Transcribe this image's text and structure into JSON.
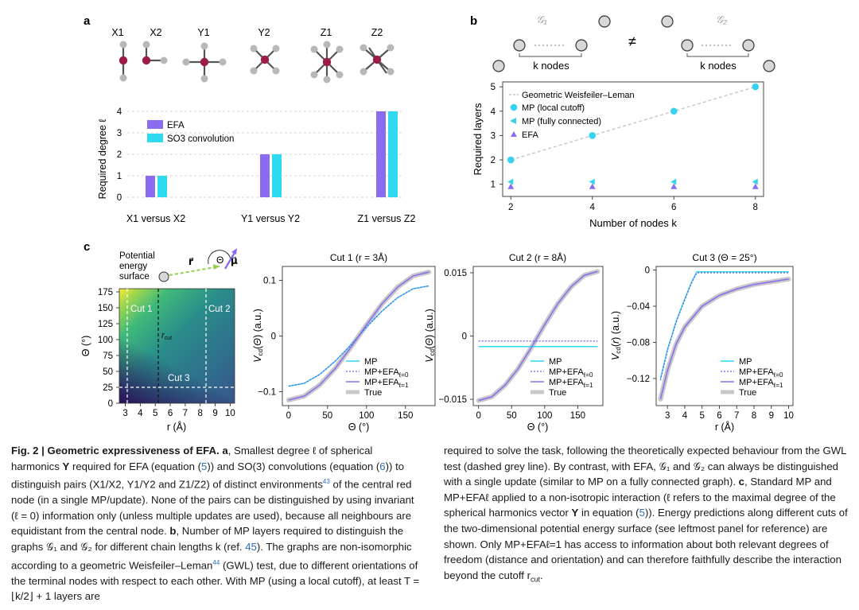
{
  "panels": {
    "a": {
      "label": "a",
      "molecules": [
        "X1",
        "X2",
        "Y1",
        "Y2",
        "Z1",
        "Z2"
      ],
      "chart_data": {
        "type": "bar",
        "ylabel": "Required degree ℓ",
        "ylim": [
          0,
          4
        ],
        "yticks": [
          "0",
          "1",
          "2",
          "3",
          "4"
        ],
        "categories": [
          "X1 versus X2",
          "Y1 versus Y2",
          "Z1 versus Z2"
        ],
        "series": [
          {
            "name": "EFA",
            "values": [
              1,
              2,
              4
            ],
            "color": "#8b6cf0"
          },
          {
            "name": "SO3 convolution",
            "values": [
              1,
              2,
              4
            ],
            "color": "#2fd9f0"
          }
        ]
      }
    },
    "b": {
      "label": "b",
      "graph1_symbol": "𝒢₁",
      "graph2_symbol": "𝒢₂",
      "not_equal": "≠",
      "knodes1": "k nodes",
      "knodes2": "k nodes",
      "chart_data": {
        "type": "scatter",
        "xlabel": "Number of nodes k",
        "ylabel": "Required layers",
        "xticks": [
          "2",
          "4",
          "6",
          "8"
        ],
        "yticks": [
          "1",
          "2",
          "3",
          "4",
          "5"
        ],
        "xlim": [
          1.8,
          8.2
        ],
        "ylim": [
          0.5,
          5.2
        ],
        "series": [
          {
            "name": "Geometric Weisfeiler–Leman",
            "style": "dashed-line",
            "x": [
              2,
              8
            ],
            "y": [
              2,
              5
            ],
            "color": "#c6c6c6"
          },
          {
            "name": "MP (local cutoff)",
            "style": "circle",
            "x": [
              2,
              4,
              6,
              8
            ],
            "y": [
              2,
              3,
              4,
              5
            ],
            "color": "#35d3ee"
          },
          {
            "name": "MP (fully connected)",
            "style": "triangle-left",
            "x": [
              2,
              4,
              6,
              8
            ],
            "y": [
              1.1,
              1.1,
              1.1,
              1.1
            ],
            "color": "#35d3ee"
          },
          {
            "name": "EFA",
            "style": "triangle-up",
            "x": [
              2,
              4,
              6,
              8
            ],
            "y": [
              0.9,
              0.9,
              0.9,
              0.9
            ],
            "color": "#8b6cf0"
          }
        ]
      }
    },
    "c": {
      "label": "c",
      "pes_label_1": "Potential",
      "pes_label_2": "energy",
      "pes_label_3": "surface",
      "vec_r": "r⃗",
      "vec_theta": "Θ",
      "vec_mu": "μ⃗",
      "heatmap": {
        "xlabel": "r (Å)",
        "ylabel": "Θ (°)",
        "xticks": [
          "3",
          "4",
          "5",
          "6",
          "7",
          "8",
          "9",
          "10"
        ],
        "yticks": [
          "0",
          "25",
          "50",
          "75",
          "100",
          "125",
          "150",
          "175"
        ],
        "cut1": "Cut 1",
        "cut2": "Cut 2",
        "cut3": "Cut 3",
        "rcut": "r",
        "rcut_sub": "cut"
      },
      "chart_data": [
        {
          "type": "line",
          "title": "Cut 1 (r = 3Å)",
          "xlabel": "Θ (°)",
          "ylabel": "V",
          "xticks": [
            "0",
            "50",
            "100",
            "150"
          ],
          "yticks": [
            "−0.1",
            "0",
            "0.1"
          ],
          "xlim": [
            -8,
            188
          ],
          "ylim": [
            -0.125,
            0.125
          ],
          "series": [
            {
              "name": "MP",
              "color": "#2fd9f0",
              "style": "solid",
              "x": [
                0,
                20,
                40,
                60,
                80,
                100,
                120,
                140,
                160,
                180
              ],
              "y": [
                -0.09,
                -0.085,
                -0.069,
                -0.045,
                -0.016,
                0.016,
                0.045,
                0.069,
                0.085,
                0.09
              ]
            },
            {
              "name": "MP+EFAℓ=0",
              "color": "#6a5ce8",
              "style": "dotted",
              "x": [
                0,
                20,
                40,
                60,
                80,
                100,
                120,
                140,
                160,
                180
              ],
              "y": [
                -0.09,
                -0.085,
                -0.069,
                -0.045,
                -0.016,
                0.016,
                0.045,
                0.069,
                0.085,
                0.09
              ]
            },
            {
              "name": "MP+EFAℓ=1",
              "color": "#8b6cf0",
              "style": "solid",
              "x": [
                0,
                20,
                40,
                60,
                80,
                100,
                120,
                140,
                160,
                180
              ],
              "y": [
                -0.115,
                -0.108,
                -0.088,
                -0.058,
                -0.02,
                0.02,
                0.058,
                0.088,
                0.108,
                0.115
              ]
            },
            {
              "name": "True",
              "color": "#c8c8c8",
              "style": "thick",
              "x": [
                0,
                20,
                40,
                60,
                80,
                100,
                120,
                140,
                160,
                180
              ],
              "y": [
                -0.115,
                -0.108,
                -0.088,
                -0.058,
                -0.02,
                0.02,
                0.058,
                0.088,
                0.108,
                0.115
              ]
            }
          ],
          "legend": [
            "MP",
            "MP+EFAℓ=0",
            "MP+EFAℓ=1",
            "True"
          ]
        },
        {
          "type": "line",
          "title": "Cut 2 (r = 8Å)",
          "xlabel": "Θ (°)",
          "ylabel": "V",
          "xticks": [
            "0",
            "50",
            "100",
            "150"
          ],
          "yticks": [
            "−0.015",
            "0",
            "0.015"
          ],
          "xlim": [
            -8,
            188
          ],
          "ylim": [
            -0.0165,
            0.0165
          ],
          "series": [
            {
              "name": "MP",
              "color": "#2fd9f0",
              "style": "solid",
              "x": [
                0,
                180
              ],
              "y": [
                -0.0025,
                -0.0025
              ]
            },
            {
              "name": "MP+EFAℓ=0",
              "color": "#6a5ce8",
              "style": "dotted",
              "x": [
                0,
                180
              ],
              "y": [
                -0.0012,
                -0.0012
              ]
            },
            {
              "name": "MP+EFAℓ=1",
              "color": "#8b6cf0",
              "style": "solid",
              "x": [
                0,
                20,
                40,
                60,
                80,
                100,
                120,
                140,
                160,
                180
              ],
              "y": [
                -0.0153,
                -0.0144,
                -0.0117,
                -0.0077,
                -0.0027,
                0.0027,
                0.0077,
                0.0117,
                0.0144,
                0.0153
              ]
            },
            {
              "name": "True",
              "color": "#c8c8c8",
              "style": "thick",
              "x": [
                0,
                20,
                40,
                60,
                80,
                100,
                120,
                140,
                160,
                180
              ],
              "y": [
                -0.0153,
                -0.0144,
                -0.0117,
                -0.0077,
                -0.0027,
                0.0027,
                0.0077,
                0.0117,
                0.0144,
                0.0153
              ]
            }
          ],
          "legend": [
            "MP",
            "MP+EFAℓ=0",
            "MP+EFAℓ=1",
            "True"
          ]
        },
        {
          "type": "line",
          "title": "Cut 3 (Θ = 25°)",
          "xlabel": "r (Å)",
          "ylabel": "V",
          "xticks": [
            "3",
            "4",
            "5",
            "6",
            "7",
            "8",
            "9",
            "10"
          ],
          "yticks": [
            "−0.12",
            "−0.08",
            "−0.04",
            "0"
          ],
          "xlim": [
            2.35,
            10.25
          ],
          "ylim": [
            -0.15,
            0.004
          ],
          "series": [
            {
              "name": "MP",
              "color": "#2fd9f0",
              "style": "solid",
              "x": [
                2.6,
                3.0,
                3.5,
                4.0,
                4.4,
                4.7,
                5.0,
                6.0,
                7.0,
                8.0,
                9.0,
                10.0
              ],
              "y": [
                -0.12,
                -0.088,
                -0.057,
                -0.032,
                -0.013,
                -0.002,
                -0.002,
                -0.002,
                -0.002,
                -0.002,
                -0.002,
                -0.002
              ]
            },
            {
              "name": "MP+EFAℓ=0",
              "color": "#6a5ce8",
              "style": "dotted",
              "x": [
                2.6,
                3.0,
                3.5,
                4.0,
                4.4,
                4.7,
                5.0,
                6.0,
                7.0,
                8.0,
                9.0,
                10.0
              ],
              "y": [
                -0.122,
                -0.089,
                -0.058,
                -0.033,
                -0.014,
                -0.003,
                -0.003,
                -0.003,
                -0.003,
                -0.003,
                -0.003,
                -0.003
              ]
            },
            {
              "name": "MP+EFAℓ=1",
              "color": "#8b6cf0",
              "style": "solid",
              "x": [
                2.6,
                3.0,
                3.5,
                4.0,
                5.0,
                6.0,
                7.0,
                8.0,
                9.0,
                10.0
              ],
              "y": [
                -0.143,
                -0.111,
                -0.082,
                -0.063,
                -0.04,
                -0.028,
                -0.021,
                -0.016,
                -0.013,
                -0.01
              ]
            },
            {
              "name": "True",
              "color": "#c8c8c8",
              "style": "thick",
              "x": [
                2.6,
                3.0,
                3.5,
                4.0,
                5.0,
                6.0,
                7.0,
                8.0,
                9.0,
                10.0
              ],
              "y": [
                -0.143,
                -0.111,
                -0.082,
                -0.063,
                -0.04,
                -0.028,
                -0.021,
                -0.016,
                -0.013,
                -0.01
              ]
            }
          ],
          "legend": [
            "MP",
            "MP+EFAℓ=0",
            "MP+EFAℓ=1",
            "True"
          ]
        }
      ]
    }
  },
  "caption": {
    "fig_label": "Fig. 2 | Geometric expressiveness of EFA.",
    "left_pre_a": " ",
    "a_label": "a",
    "left_a1": ", Smallest degree ℓ of spherical harmonics ",
    "Y": "Y",
    "left_a2": " required for EFA (equation (",
    "eq5": "5",
    "left_a3": ")) and SO(3) convolutions (equation (",
    "eq6": "6",
    "left_a4": ")) to distinguish pairs (X1/X2, Y1/Y2 and Z1/Z2) of distinct environments",
    "ref43": "43",
    "left_a5": " of the central red node (in a single MP/update). None of the pairs can be distinguished by using invariant (ℓ = 0) information only (unless multiple updates are used), because all neighbours are equidistant from the central node. ",
    "b_label": "b",
    "left_b1": ", Number of MP layers required to distinguish the graphs 𝒢₁ and 𝒢₂ for different chain lengths k (ref. ",
    "ref45": "45",
    "left_b2": "). The graphs are non-isomorphic according to a geometric Weisfeiler–Leman",
    "ref44": "44",
    "left_b3": " (GWL) test, due to different orientations of the terminal nodes with respect to each other. With MP (using a local cutoff), at least T = ⌊k/2⌋ + 1 layers are",
    "right_1": "required to solve the task, following the theoretically expected behaviour from the GWL test (dashed grey line). By contrast, with EFA, 𝒢₁ and 𝒢₂ can always be distinguished with a single update (similar to MP on a fully connected graph). ",
    "c_label": "c",
    "right_2": ", Standard MP and MP+EFAℓ applied to a non-isotropic interaction (ℓ refers to the maximal degree of the spherical harmonics vector ",
    "Y2": "Y",
    "right_3": " in equation (",
    "eq5b": "5",
    "right_4": ")). Energy predictions along different cuts of the two-dimensional potential energy surface (see leftmost panel for reference) are shown. Only MP+EFAℓ=1 has access to information about both relevant degrees of freedom (distance and orientation) and can therefore faithfully describe the interaction beyond the cutoff r",
    "rcut_sub": "cut",
    "right_end": "."
  }
}
